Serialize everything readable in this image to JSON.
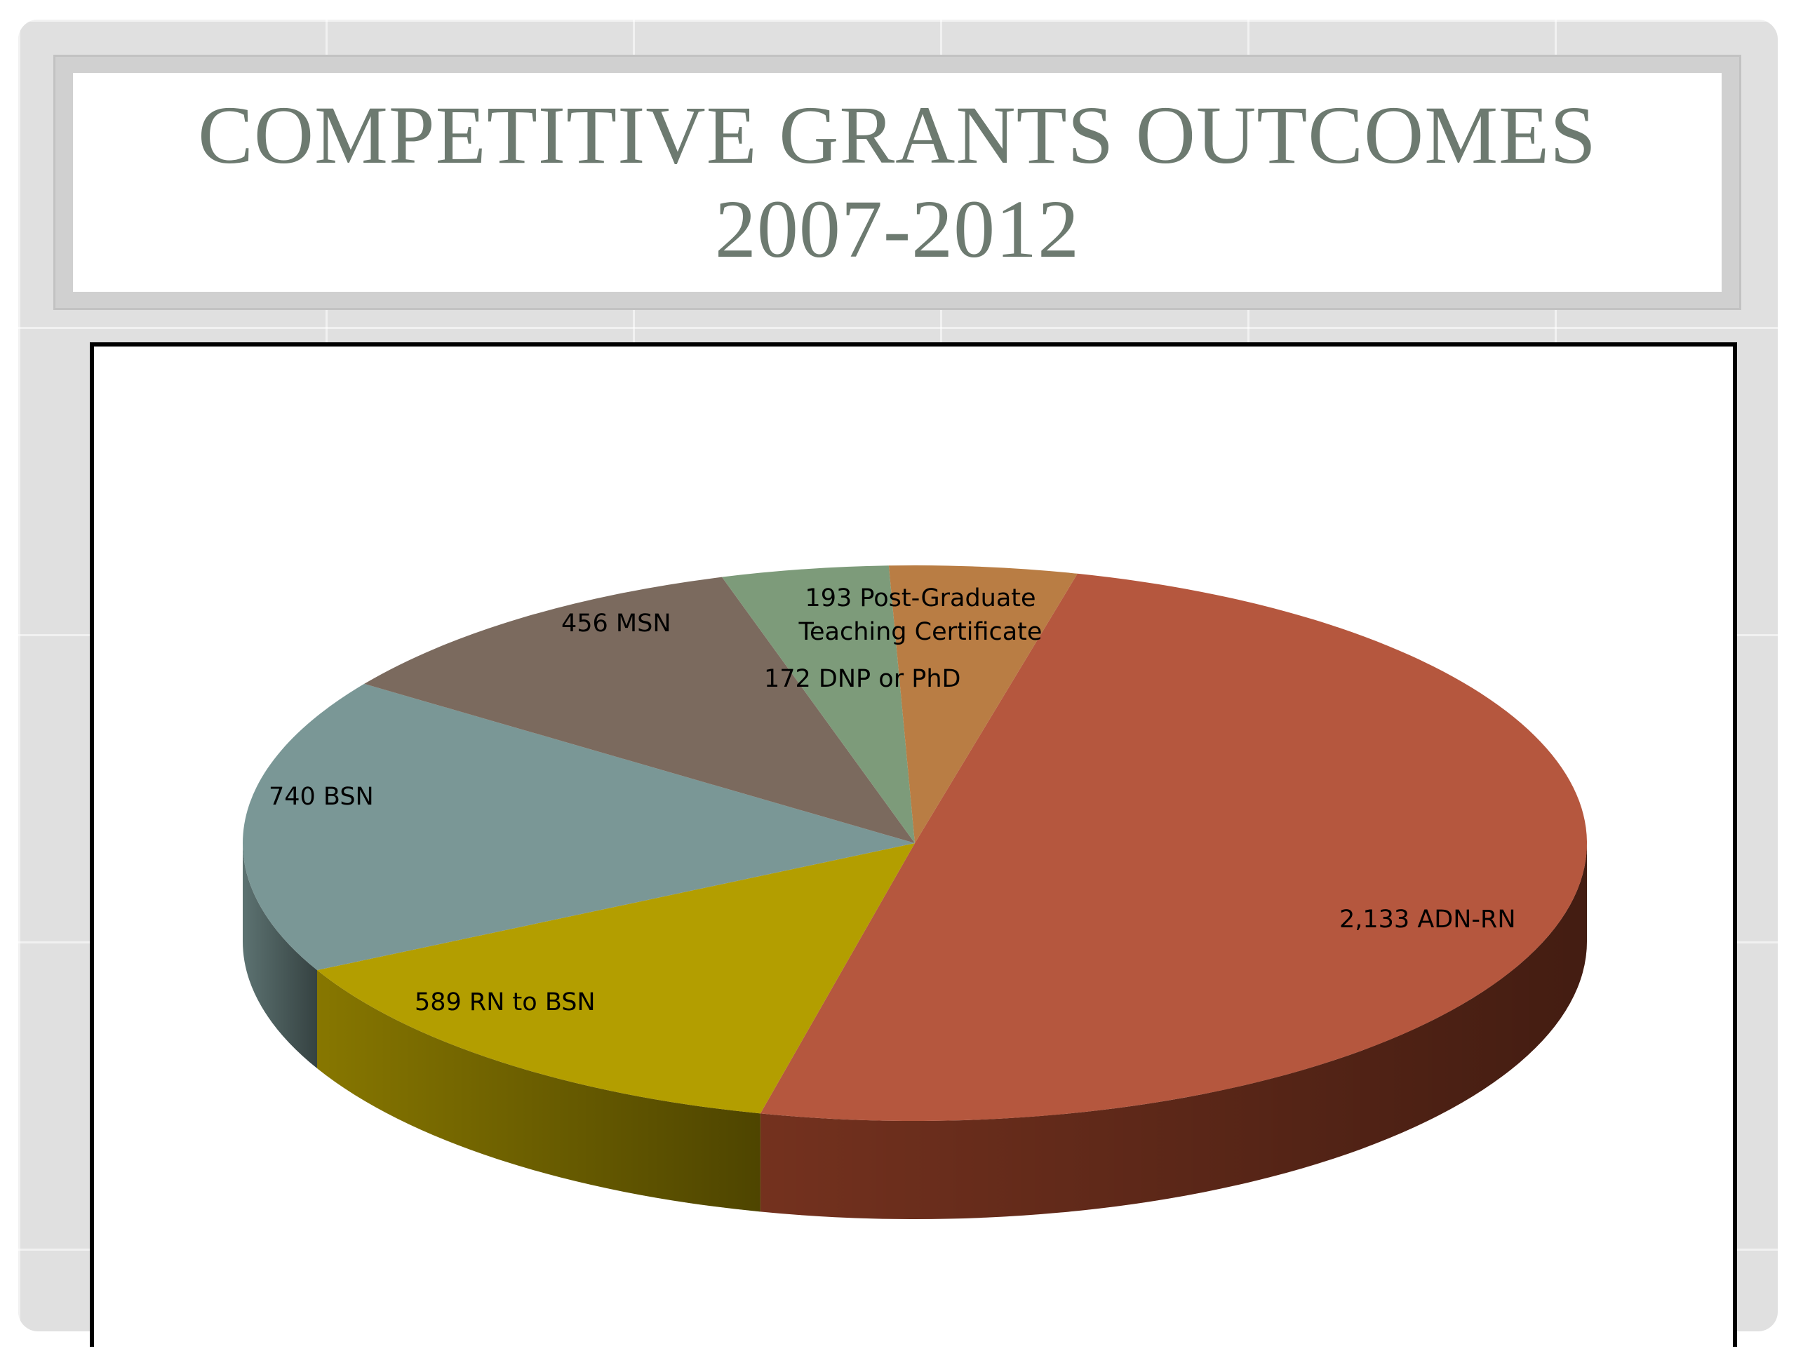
{
  "slide": {
    "title_line1": "COMPETITIVE GRANTS OUTCOMES",
    "title_line2": "2007-2012"
  },
  "colors": {
    "title_text": "#6d7a70",
    "frame": "#000000",
    "slide_background": "#e0e0e0"
  },
  "chart_data": {
    "type": "pie",
    "style": "3d",
    "title": "",
    "slices": [
      {
        "label": "ADN-RN",
        "value": 2133,
        "display": "2,133 ADN-RN",
        "color": "#b5573e",
        "side": "#7a3420"
      },
      {
        "label": "RN to BSN",
        "value": 589,
        "display": "589 RN to BSN",
        "color": "#b39e00",
        "side": "#8e7d00"
      },
      {
        "label": "BSN",
        "value": 740,
        "display": "740 BSN",
        "color": "#7a9796",
        "side": "#617877"
      },
      {
        "label": "MSN",
        "value": 456,
        "display": "456 MSN",
        "color": "#7b6a5e",
        "side": "#5f5248"
      },
      {
        "label": "DNP or PhD",
        "value": 172,
        "display": "172 DNP or PhD",
        "color": "#7d9b7a",
        "side": "#617a5f"
      },
      {
        "label": "Post-Graduate Teaching Certificate",
        "value": 193,
        "display_lines": [
          "193 Post-Graduate",
          "Teaching Certificate"
        ],
        "color": "#b97d44",
        "side": "#8f5f31"
      }
    ],
    "legend": "none"
  }
}
